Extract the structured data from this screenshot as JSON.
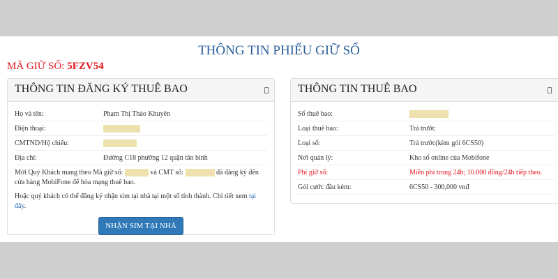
{
  "title": "THÔNG TIN PHIẾU GIỮ SỐ",
  "code": {
    "label": "MÃ GIỮ SỐ:",
    "value": "5FZV54"
  },
  "left": {
    "header": "THÔNG TIN ĐĂNG KÝ THUÊ BAO",
    "rows": [
      {
        "k": "Họ và tên:",
        "v": "Phạm Thị Thảo Khuyên"
      },
      {
        "k": "Điện thoại:",
        "v": ""
      },
      {
        "k": "CMTND/Hộ chiếu:",
        "v": ""
      },
      {
        "k": "Địa chỉ:",
        "v": "Đường C18 phường 12 quận tân bình"
      }
    ],
    "msg1a": "Mời Quý Khách mang theo Mã giữ số:",
    "msg1b": "và CMT số:",
    "msg1c": "đã đăng ký đến cửa hàng MobiFone để hòa mạng thuê bao.",
    "msg2": "Hoặc quý khách có thể đăng ký nhận sim tại nhà tại một số tỉnh thành. Chi tiết xem",
    "link": "tại đây",
    "button": "NHẬN SIM TẠI NHÀ"
  },
  "right": {
    "header": "THÔNG TIN THUÊ BAO",
    "rows": [
      {
        "k": "Số thuê bao:",
        "v": ""
      },
      {
        "k": "Loại thuê bao:",
        "v": "Trả trước"
      },
      {
        "k": "Loại số:",
        "v": "Trả trước(kèm gói 6CS50)"
      },
      {
        "k": "Nơi quản lý:",
        "v": "Kho số online của Mobifone"
      },
      {
        "k": "Phí giữ số:",
        "v": "Miễn phí trong 24h; 10.000 đồng/24h tiếp theo."
      },
      {
        "k": "Gói cước đầu kèm:",
        "v": "6CS50 - 300,000 vnđ"
      }
    ]
  },
  "colors": {
    "accent": "#2a5d99",
    "alert": "#e3161d",
    "button": "#2f79b8",
    "mask": "#efe1ae"
  }
}
